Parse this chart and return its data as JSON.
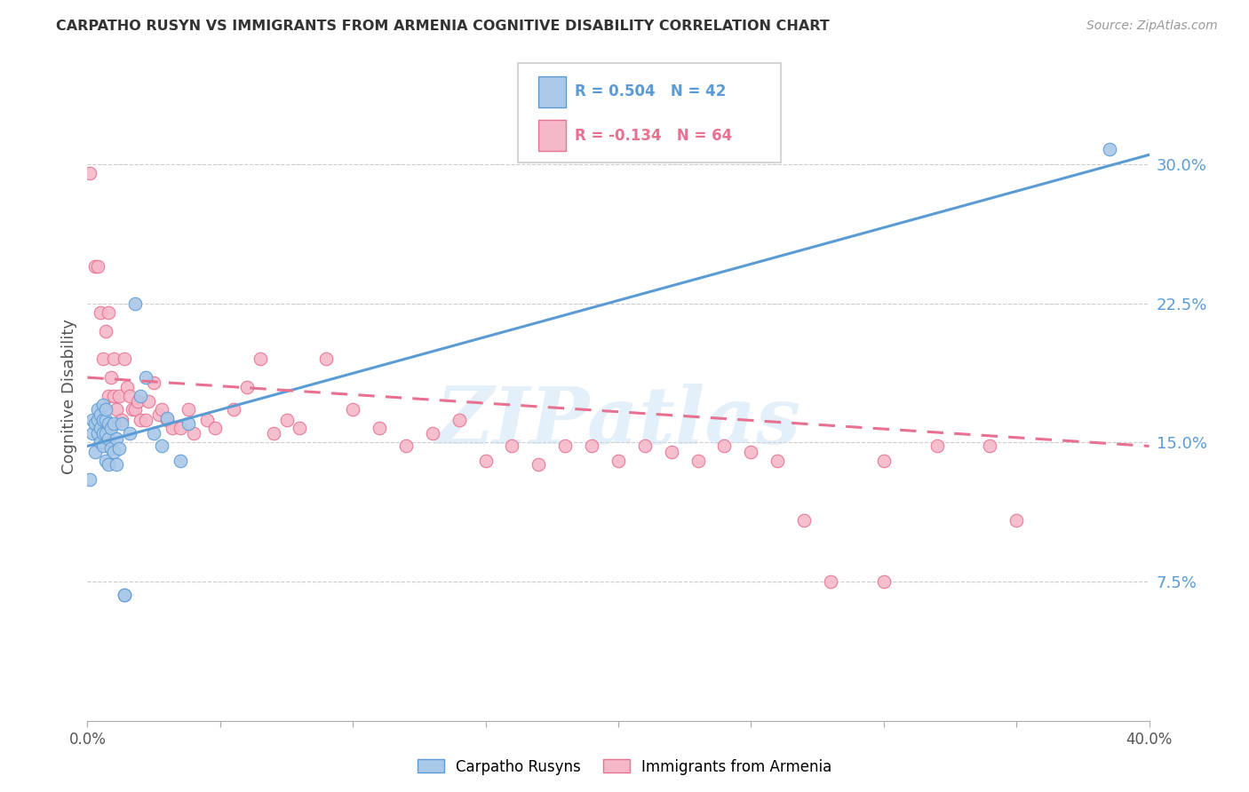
{
  "title": "CARPATHO RUSYN VS IMMIGRANTS FROM ARMENIA COGNITIVE DISABILITY CORRELATION CHART",
  "source": "Source: ZipAtlas.com",
  "ylabel": "Cognitive Disability",
  "xlim": [
    0.0,
    0.4
  ],
  "ylim": [
    0.0,
    0.35
  ],
  "yticks_right": [
    0.075,
    0.15,
    0.225,
    0.3
  ],
  "ytick_right_labels": [
    "7.5%",
    "15.0%",
    "22.5%",
    "30.0%"
  ],
  "blue_R": "0.504",
  "blue_N": "42",
  "pink_R": "-0.134",
  "pink_N": "64",
  "blue_color": "#aac8e8",
  "blue_line_color": "#5b9bd5",
  "pink_color": "#f5b8c8",
  "pink_line_color": "#e87090",
  "blue_line": [
    0.0,
    0.148,
    0.4,
    0.305
  ],
  "pink_line": [
    0.0,
    0.185,
    0.4,
    0.148
  ],
  "blue_scatter_x": [
    0.001,
    0.002,
    0.002,
    0.003,
    0.003,
    0.004,
    0.004,
    0.004,
    0.005,
    0.005,
    0.005,
    0.006,
    0.006,
    0.006,
    0.006,
    0.007,
    0.007,
    0.007,
    0.007,
    0.008,
    0.008,
    0.008,
    0.009,
    0.009,
    0.01,
    0.01,
    0.011,
    0.011,
    0.012,
    0.013,
    0.014,
    0.016,
    0.018,
    0.02,
    0.022,
    0.025,
    0.028,
    0.03,
    0.035,
    0.038,
    0.014,
    0.385
  ],
  "blue_scatter_y": [
    0.13,
    0.155,
    0.162,
    0.145,
    0.16,
    0.155,
    0.162,
    0.168,
    0.15,
    0.158,
    0.165,
    0.148,
    0.155,
    0.162,
    0.17,
    0.14,
    0.155,
    0.162,
    0.168,
    0.138,
    0.152,
    0.16,
    0.147,
    0.158,
    0.145,
    0.16,
    0.138,
    0.152,
    0.147,
    0.16,
    0.068,
    0.155,
    0.225,
    0.175,
    0.185,
    0.155,
    0.148,
    0.163,
    0.14,
    0.16,
    0.068,
    0.308
  ],
  "pink_scatter_x": [
    0.001,
    0.003,
    0.004,
    0.005,
    0.006,
    0.007,
    0.008,
    0.008,
    0.009,
    0.01,
    0.01,
    0.011,
    0.012,
    0.013,
    0.014,
    0.015,
    0.016,
    0.017,
    0.018,
    0.019,
    0.02,
    0.022,
    0.023,
    0.025,
    0.027,
    0.028,
    0.03,
    0.032,
    0.035,
    0.038,
    0.04,
    0.045,
    0.048,
    0.055,
    0.06,
    0.065,
    0.07,
    0.075,
    0.08,
    0.09,
    0.1,
    0.11,
    0.12,
    0.13,
    0.14,
    0.15,
    0.16,
    0.17,
    0.18,
    0.19,
    0.2,
    0.21,
    0.22,
    0.23,
    0.24,
    0.25,
    0.26,
    0.27,
    0.28,
    0.3,
    0.32,
    0.34,
    0.35,
    0.3
  ],
  "pink_scatter_y": [
    0.295,
    0.245,
    0.245,
    0.22,
    0.195,
    0.21,
    0.22,
    0.175,
    0.185,
    0.195,
    0.175,
    0.168,
    0.175,
    0.162,
    0.195,
    0.18,
    0.175,
    0.168,
    0.168,
    0.172,
    0.162,
    0.162,
    0.172,
    0.182,
    0.165,
    0.168,
    0.162,
    0.158,
    0.158,
    0.168,
    0.155,
    0.162,
    0.158,
    0.168,
    0.18,
    0.195,
    0.155,
    0.162,
    0.158,
    0.195,
    0.168,
    0.158,
    0.148,
    0.155,
    0.162,
    0.14,
    0.148,
    0.138,
    0.148,
    0.148,
    0.14,
    0.148,
    0.145,
    0.14,
    0.148,
    0.145,
    0.14,
    0.108,
    0.075,
    0.14,
    0.148,
    0.148,
    0.108,
    0.075
  ],
  "watermark": "ZIPatlas",
  "background_color": "#ffffff",
  "grid_color": "#cccccc"
}
